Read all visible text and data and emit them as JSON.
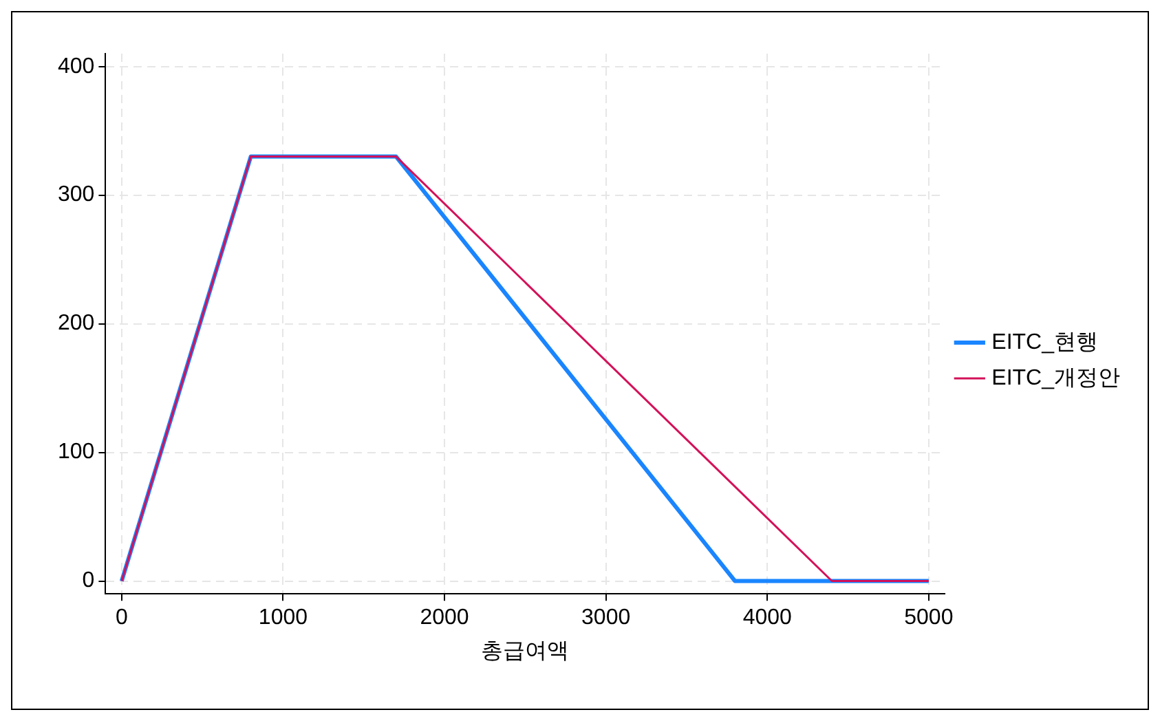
{
  "chart_data": {
    "type": "line",
    "xlabel": "총급여액",
    "legend": "right",
    "grid": true,
    "marker": "none",
    "line_style": "solid",
    "xlim": [
      -100,
      5100
    ],
    "xticks": [
      0,
      1000,
      2000,
      3000,
      4000,
      5000
    ],
    "ylim": [
      -10,
      410
    ],
    "yticks": [
      0,
      100,
      200,
      300,
      400
    ],
    "series": [
      {
        "name": "EITC_현행",
        "color": "#1a85ff",
        "x": [
          0,
          800,
          1700,
          3800,
          5000
        ],
        "values": [
          0,
          330,
          330,
          0,
          0
        ]
      },
      {
        "name": "EITC_개정안",
        "color": "#d41159",
        "x": [
          0,
          800,
          1700,
          4400,
          5000
        ],
        "values": [
          0,
          330,
          330,
          0,
          0
        ]
      }
    ]
  }
}
